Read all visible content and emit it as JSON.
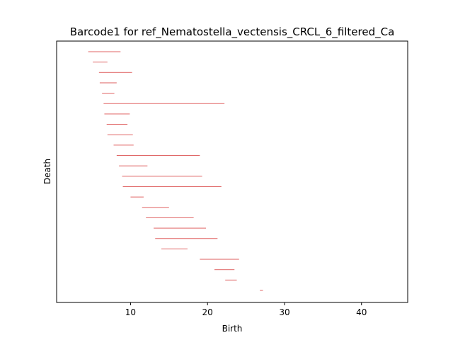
{
  "chart_data": {
    "type": "barcode",
    "title": "Barcode1 for ref_Nematostella_vectensis_CRCL_6_filtered_Ca",
    "xlabel": "Birth",
    "ylabel": "Death",
    "xlim": [
      0.4,
      46.0
    ],
    "xticks": [
      10,
      20,
      30,
      40
    ],
    "yticks_shown": false,
    "bar_color": "#e06666",
    "bar_count": 300,
    "bars": [
      {
        "birth": 4.5,
        "death": 8.7
      },
      {
        "birth": 5.1,
        "death": 7.0
      },
      {
        "birth": 5.9,
        "death": 10.2
      },
      {
        "birth": 6.0,
        "death": 8.2
      },
      {
        "birth": 6.3,
        "death": 7.9
      },
      {
        "birth": 6.6,
        "death": 9.9
      },
      {
        "birth": 6.5,
        "death": 22.2
      },
      {
        "birth": 6.9,
        "death": 9.6
      },
      {
        "birth": 7.0,
        "death": 10.3
      },
      {
        "birth": 7.8,
        "death": 10.4
      },
      {
        "birth": 8.2,
        "death": 19.0
      },
      {
        "birth": 8.5,
        "death": 12.2
      },
      {
        "birth": 8.9,
        "death": 19.3
      },
      {
        "birth": 9.0,
        "death": 21.8
      },
      {
        "birth": 10.0,
        "death": 11.7
      },
      {
        "birth": 11.5,
        "death": 15.0
      },
      {
        "birth": 12.0,
        "death": 18.2
      },
      {
        "birth": 13.0,
        "death": 19.8
      },
      {
        "birth": 13.2,
        "death": 21.3
      },
      {
        "birth": 14.0,
        "death": 17.4
      },
      {
        "birth": 19.0,
        "death": 24.1
      },
      {
        "birth": 20.9,
        "death": 23.5
      },
      {
        "birth": 22.3,
        "death": 23.8
      },
      {
        "birth": 26.8,
        "death": 27.2
      }
    ]
  }
}
